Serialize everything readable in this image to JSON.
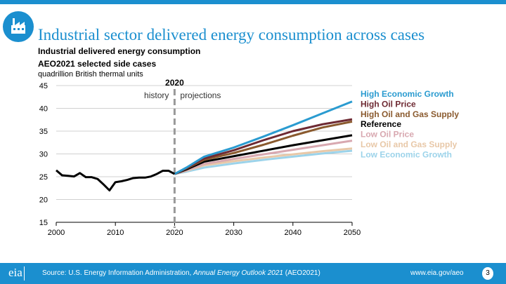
{
  "title": "Industrial sector delivered energy consumption across cases",
  "footer": {
    "source_prefix": "Source: U.S. Energy Information Administration, ",
    "source_italic": "Annual Energy Outlook 2021",
    "source_suffix": " (AEO2021)",
    "url": "www.eia.gov/aeo",
    "page": "3",
    "logo": "eia"
  },
  "colors": {
    "brand": "#1b8fcf"
  },
  "chart_data": {
    "type": "line",
    "title": "Industrial delivered energy consumption",
    "subtitle": "AEO2021 selected side cases",
    "ylabel": "quadrillion British thermal units",
    "ylim": [
      15,
      45
    ],
    "yticks": [
      15,
      20,
      25,
      30,
      35,
      40,
      45
    ],
    "xlim": [
      2000,
      2050
    ],
    "xticks": [
      2000,
      2010,
      2020,
      2030,
      2040,
      2050
    ],
    "grid": true,
    "divider": {
      "year": 2020,
      "label": "2020",
      "left": "history",
      "right": "projections"
    },
    "legend_position": "right",
    "history": {
      "x": [
        2000,
        2001,
        2002,
        2003,
        2004,
        2005,
        2006,
        2007,
        2008,
        2009,
        2010,
        2011,
        2012,
        2013,
        2014,
        2015,
        2016,
        2017,
        2018,
        2019,
        2020
      ],
      "values": [
        26.4,
        25.3,
        25.2,
        25.05,
        25.8,
        24.9,
        24.9,
        24.5,
        23.3,
        22.0,
        23.8,
        24.0,
        24.3,
        24.7,
        24.8,
        24.8,
        25.05,
        25.6,
        26.3,
        26.3,
        25.6
      ],
      "color": "#000000"
    },
    "x": [
      2020,
      2022,
      2025,
      2030,
      2035,
      2040,
      2045,
      2050
    ],
    "series": [
      {
        "name": "High Economic Growth",
        "color": "#2a9bd0",
        "values": [
          25.6,
          27.0,
          29.4,
          31.4,
          33.8,
          36.3,
          38.9,
          41.5
        ]
      },
      {
        "name": "High Oil Price",
        "color": "#6e2a33",
        "values": [
          25.6,
          26.9,
          29.0,
          30.8,
          33.0,
          35.0,
          36.5,
          37.6
        ]
      },
      {
        "name": "High Oil and Gas Supply",
        "color": "#8a5a2e",
        "values": [
          25.6,
          26.8,
          28.7,
          30.2,
          32.0,
          34.0,
          35.8,
          37.1
        ]
      },
      {
        "name": "Reference",
        "color": "#000000",
        "values": [
          25.6,
          26.6,
          28.3,
          29.5,
          30.7,
          31.9,
          33.0,
          34.1
        ]
      },
      {
        "name": "Low Oil Price",
        "color": "#d8a8b0",
        "values": [
          25.6,
          26.4,
          27.8,
          28.9,
          29.9,
          30.9,
          31.9,
          32.9
        ]
      },
      {
        "name": "Low Oil and Gas Supply",
        "color": "#e8c8a8",
        "values": [
          25.6,
          26.3,
          27.5,
          28.4,
          29.2,
          29.9,
          30.6,
          31.2
        ]
      },
      {
        "name": "Low Economic Growth",
        "color": "#9cd3ea",
        "values": [
          25.6,
          26.1,
          27.0,
          27.9,
          28.7,
          29.4,
          30.1,
          30.7
        ]
      }
    ]
  }
}
